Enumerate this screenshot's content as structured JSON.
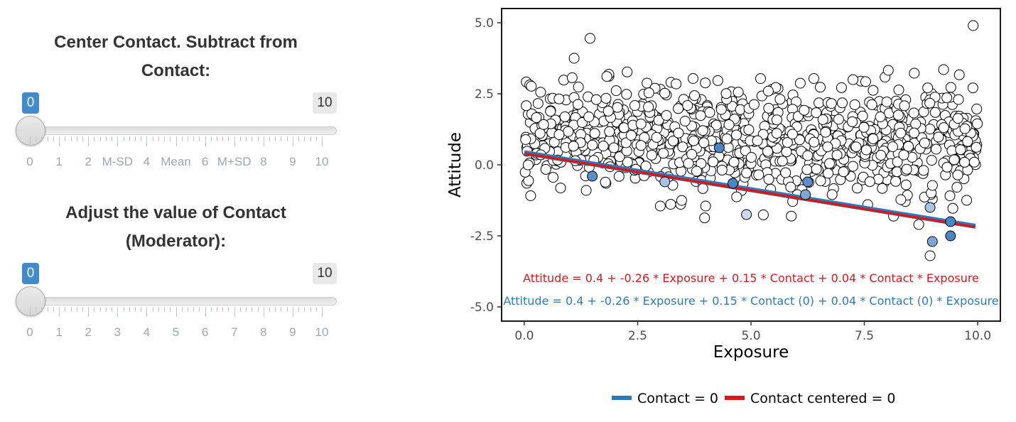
{
  "sliders": [
    {
      "title_line1": "Center Contact. Subtract from",
      "title_line2": "Contact:",
      "from_value": "0",
      "to_value": "10",
      "tick_labels": [
        "0",
        "1",
        "2",
        "M-SD",
        "4",
        "Mean",
        "6",
        "M+SD",
        "8",
        "9",
        "10"
      ]
    },
    {
      "title_line1": "Adjust the value of Contact",
      "title_line2": "(Moderator):",
      "from_value": "0",
      "to_value": "10",
      "tick_labels": [
        "0",
        "1",
        "2",
        "3",
        "4",
        "5",
        "6",
        "7",
        "8",
        "9",
        "10"
      ]
    }
  ],
  "chart_data": {
    "type": "scatter",
    "xlabel": "Exposure",
    "ylabel": "Attitude",
    "xlim": [
      -0.5,
      10.5
    ],
    "ylim": [
      -5.5,
      5.5
    ],
    "x_ticks": [
      0,
      2.5,
      5,
      7.5,
      10
    ],
    "x_tick_labels": [
      "0.0",
      "2.5",
      "5.0",
      "7.5",
      "10.0"
    ],
    "y_ticks": [
      5,
      2.5,
      0,
      -2.5,
      -5
    ],
    "y_tick_labels": [
      "5.0",
      "2.5",
      "0.0",
      "-2.5",
      "-5.0"
    ],
    "grid": false,
    "lines": [
      {
        "name": "Contact = 0",
        "color": "#2e7ab8",
        "intercept": 0.4,
        "slope": -0.26
      },
      {
        "name": "Contact centered = 0",
        "color": "#d7191c",
        "intercept": 0.4,
        "slope": -0.26
      }
    ],
    "highlighted_points": [
      {
        "x": 1.5,
        "y": -0.4,
        "color": "#5b8fc7"
      },
      {
        "x": 3.1,
        "y": -0.6,
        "color": "#a9c3e3"
      },
      {
        "x": 4.3,
        "y": 0.6,
        "color": "#4a86c5"
      },
      {
        "x": 4.6,
        "y": -0.65,
        "color": "#4a86c5"
      },
      {
        "x": 4.9,
        "y": -1.75,
        "color": "#c9d9ee"
      },
      {
        "x": 6.25,
        "y": -0.6,
        "color": "#5b8fc7"
      },
      {
        "x": 6.2,
        "y": -1.05,
        "color": "#7fa7d6"
      },
      {
        "x": 8.95,
        "y": -1.5,
        "color": "#a9c3e3"
      },
      {
        "x": 9.0,
        "y": -2.7,
        "color": "#7fa7d6"
      },
      {
        "x": 9.4,
        "y": -2.0,
        "color": "#4a86c5"
      },
      {
        "x": 9.4,
        "y": -2.5,
        "color": "#4a86c5"
      }
    ],
    "outlier_points": [
      {
        "x": 1.45,
        "y": 4.45
      },
      {
        "x": 9.9,
        "y": 4.9
      },
      {
        "x": 1.1,
        "y": 3.75
      },
      {
        "x": 8.95,
        "y": -3.2
      },
      {
        "x": 8.7,
        "y": -2.1
      },
      {
        "x": 3.0,
        "y": -1.45
      },
      {
        "x": 4.0,
        "y": -1.45
      }
    ],
    "scatter_summary": {
      "n_points": 900,
      "x_range": [
        0,
        10
      ],
      "y_range": [
        -2,
        3.5
      ]
    },
    "equation_red": "Attitude =  0.4  +  -0.26  * Exposure + 0.15 * Contact + 0.04 * Contact * Exposure",
    "equation_blue": "Attitude = 0.4 + -0.26 * Exposure + 0.15 * Contact (0) + 0.04 * Contact (0) * Exposure",
    "equation_red_color": "#d7191c",
    "equation_blue_color": "#2e7ab8",
    "legend_position": "bottom"
  }
}
